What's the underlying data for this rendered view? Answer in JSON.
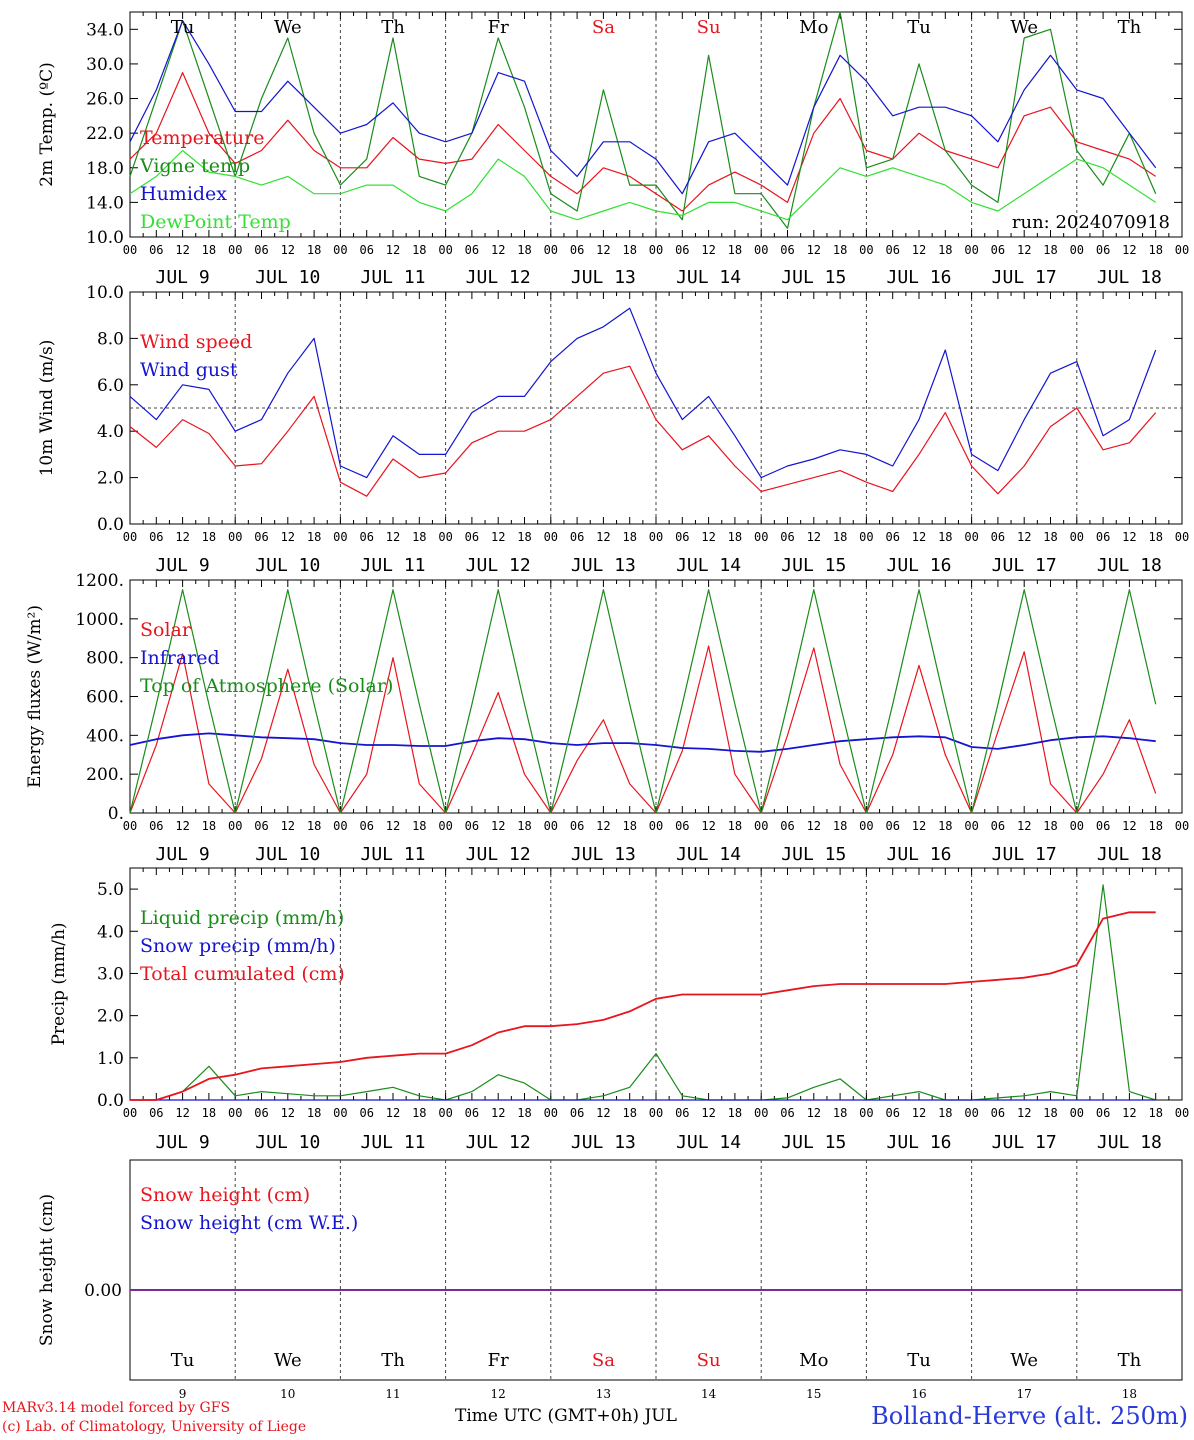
{
  "colors": {
    "red": "#e8141e",
    "green": "#1a8c1a",
    "blue": "#1414d2",
    "lightgreen": "#33e033",
    "grid": "#333333",
    "purple": "#7a2a9a"
  },
  "run_label": "run: 2024070918",
  "hour_ticks": [
    "00",
    "06",
    "12",
    "18"
  ],
  "date_labels": [
    "JUL  9",
    "JUL 10",
    "JUL 11",
    "JUL 12",
    "JUL 13",
    "JUL 14",
    "JUL 15",
    "JUL 16",
    "JUL 17",
    "JUL 18"
  ],
  "weekdays": [
    {
      "label": "Tu",
      "color": "#000000"
    },
    {
      "label": "We",
      "color": "#000000"
    },
    {
      "label": "Th",
      "color": "#000000"
    },
    {
      "label": "Fr",
      "color": "#000000"
    },
    {
      "label": "Sa",
      "color": "#e8141e"
    },
    {
      "label": "Su",
      "color": "#e8141e"
    },
    {
      "label": "Mo",
      "color": "#000000"
    },
    {
      "label": "Tu",
      "color": "#000000"
    },
    {
      "label": "We",
      "color": "#000000"
    },
    {
      "label": "Th",
      "color": "#000000"
    }
  ],
  "day_numbers": [
    "9",
    "10",
    "11",
    "12",
    "13",
    "14",
    "15",
    "16",
    "17",
    "18"
  ],
  "footer": {
    "model": "MARv3.14 model forced by GFS",
    "lab": "(c) Lab. of Climatology, University of Liege",
    "xaxis": "Time UTC (GMT+0h) JUL",
    "station": "Bolland-Herve (alt. 250m)"
  },
  "chart_data": [
    {
      "type": "line",
      "ylabel": "2m Temp. (ºC)",
      "ylim": [
        10,
        36
      ],
      "yticks": [
        "10.0",
        "14.0",
        "18.0",
        "22.0",
        "26.0",
        "30.0",
        "34.0"
      ],
      "x_hours": [
        0,
        6,
        12,
        18,
        24,
        30,
        36,
        42,
        48,
        54,
        60,
        66,
        72,
        78,
        84,
        90,
        96,
        102,
        108,
        114,
        120,
        126,
        132,
        138,
        144,
        150,
        156,
        162,
        168,
        174,
        180,
        186,
        192,
        198,
        204,
        210,
        216,
        222,
        228,
        234
      ],
      "series": [
        {
          "name": "Temperature",
          "color": "#e8141e",
          "values": [
            19,
            22,
            29,
            22,
            18.5,
            20,
            23.5,
            20,
            18,
            18,
            21.5,
            19,
            18.5,
            19,
            23,
            20,
            17,
            15,
            18,
            17,
            15,
            13,
            16,
            17.5,
            16,
            14,
            22,
            26,
            20,
            19,
            22,
            20,
            19,
            18,
            24,
            25,
            21,
            20,
            19,
            17
          ]
        },
        {
          "name": "Vigne temp",
          "color": "#1a8c1a",
          "values": [
            17,
            26,
            35,
            26,
            17,
            26,
            33,
            22,
            16,
            19,
            33,
            17,
            16,
            22,
            33,
            25,
            15,
            13,
            27,
            16,
            16,
            12,
            31,
            15,
            15,
            11,
            25,
            36,
            18,
            19,
            30,
            20,
            16,
            14,
            33,
            34,
            20,
            16,
            22,
            15
          ]
        },
        {
          "name": "Humidex",
          "color": "#1414d2",
          "values": [
            21,
            27,
            35,
            30,
            24.5,
            24.5,
            28,
            25,
            22,
            23,
            25.5,
            22,
            21,
            22,
            29,
            28,
            20,
            17,
            21,
            21,
            19,
            15,
            21,
            22,
            19,
            16,
            25,
            31,
            28,
            24,
            25,
            25,
            24,
            21,
            27,
            31,
            27,
            26,
            22,
            18
          ]
        },
        {
          "name": "DewPoint Temp",
          "color": "#33e033",
          "values": [
            15,
            17,
            20,
            17.5,
            17,
            16,
            17,
            15,
            15,
            16,
            16,
            14,
            13,
            15,
            19,
            17,
            13,
            12,
            13,
            14,
            13,
            12.5,
            14,
            14,
            13,
            12,
            15,
            18,
            17,
            18,
            17,
            16,
            14,
            13,
            15,
            17,
            19,
            18,
            16,
            14
          ]
        }
      ]
    },
    {
      "type": "line",
      "ylabel": "10m Wind (m/s)",
      "ylim": [
        0,
        10
      ],
      "yticks": [
        "0.0",
        "2.0",
        "4.0",
        "6.0",
        "8.0",
        "10.0"
      ],
      "x_hours": [
        0,
        6,
        12,
        18,
        24,
        30,
        36,
        42,
        48,
        54,
        60,
        66,
        72,
        78,
        84,
        90,
        96,
        102,
        108,
        114,
        120,
        126,
        132,
        138,
        144,
        150,
        156,
        162,
        168,
        174,
        180,
        186,
        192,
        198,
        204,
        210,
        216,
        222,
        228,
        234
      ],
      "series": [
        {
          "name": "Wind speed",
          "color": "#e8141e",
          "values": [
            4.2,
            3.3,
            4.5,
            3.9,
            2.5,
            2.6,
            4,
            5.5,
            1.8,
            1.2,
            2.8,
            2,
            2.2,
            3.5,
            4,
            4,
            4.5,
            5.5,
            6.5,
            6.8,
            4.5,
            3.2,
            3.8,
            2.5,
            1.4,
            1.7,
            2,
            2.3,
            1.8,
            1.4,
            3,
            4.8,
            2.5,
            1.3,
            2.5,
            4.2,
            5,
            3.2,
            3.5,
            4.8
          ]
        },
        {
          "name": "Wind gust",
          "color": "#1414d2",
          "values": [
            5.5,
            4.5,
            6,
            5.8,
            4,
            4.5,
            6.5,
            8,
            2.5,
            2,
            3.8,
            3,
            3,
            4.8,
            5.5,
            5.5,
            7,
            8,
            8.5,
            9.3,
            6.5,
            4.5,
            5.5,
            3.8,
            2,
            2.5,
            2.8,
            3.2,
            3,
            2.5,
            4.5,
            7.5,
            3,
            2.3,
            4.5,
            6.5,
            7,
            3.8,
            4.5,
            7.5
          ]
        }
      ]
    },
    {
      "type": "line",
      "ylabel": "Energy fluxes (W/m²)",
      "ylim": [
        0,
        1200
      ],
      "yticks": [
        "0.",
        "200.",
        "400.",
        "600.",
        "800.",
        "1000.",
        "1200."
      ],
      "x_hours": [
        0,
        6,
        12,
        18,
        24,
        30,
        36,
        42,
        48,
        54,
        60,
        66,
        72,
        78,
        84,
        90,
        96,
        102,
        108,
        114,
        120,
        126,
        132,
        138,
        144,
        150,
        156,
        162,
        168,
        174,
        180,
        186,
        192,
        198,
        204,
        210,
        216,
        222,
        228,
        234
      ],
      "series": [
        {
          "name": "Solar",
          "color": "#e8141e",
          "values": [
            0,
            350,
            820,
            150,
            0,
            280,
            740,
            250,
            0,
            200,
            800,
            150,
            0,
            300,
            620,
            200,
            0,
            270,
            480,
            150,
            0,
            320,
            860,
            200,
            0,
            400,
            850,
            250,
            0,
            300,
            760,
            300,
            0,
            420,
            830,
            150,
            0,
            200,
            480,
            100
          ]
        },
        {
          "name": "Infrared",
          "color": "#1414d2",
          "values": [
            350,
            380,
            400,
            410,
            400,
            390,
            385,
            380,
            360,
            350,
            350,
            345,
            345,
            370,
            385,
            380,
            360,
            350,
            360,
            360,
            350,
            335,
            330,
            320,
            315,
            330,
            350,
            370,
            380,
            390,
            395,
            390,
            340,
            330,
            350,
            375,
            390,
            395,
            385,
            370
          ]
        },
        {
          "name": "Top of Atmosphere (Solar)",
          "color": "#1a8c1a",
          "values": [
            0,
            560,
            1150,
            560,
            0,
            560,
            1150,
            560,
            0,
            560,
            1150,
            560,
            0,
            560,
            1150,
            560,
            0,
            560,
            1150,
            560,
            0,
            560,
            1150,
            560,
            0,
            560,
            1150,
            560,
            0,
            560,
            1150,
            560,
            0,
            560,
            1150,
            560,
            0,
            560,
            1150,
            560
          ]
        }
      ]
    },
    {
      "type": "line",
      "ylabel": "Precip (mm/h)",
      "ylim": [
        0,
        5.5
      ],
      "yticks": [
        "0.0",
        "1.0",
        "2.0",
        "3.0",
        "4.0",
        "5.0"
      ],
      "x_hours": [
        0,
        6,
        12,
        18,
        24,
        30,
        36,
        42,
        48,
        54,
        60,
        66,
        72,
        78,
        84,
        90,
        96,
        102,
        108,
        114,
        120,
        126,
        132,
        138,
        144,
        150,
        156,
        162,
        168,
        174,
        180,
        186,
        192,
        198,
        204,
        210,
        216,
        222,
        228,
        234
      ],
      "series": [
        {
          "name": "Liquid precip (mm/h)",
          "color": "#1a8c1a",
          "values": [
            0,
            0,
            0.2,
            0.8,
            0.1,
            0.2,
            0.15,
            0.1,
            0.1,
            0.2,
            0.3,
            0.1,
            0,
            0.2,
            0.6,
            0.4,
            0,
            0,
            0.1,
            0.3,
            1.1,
            0.1,
            0,
            0,
            0,
            0.05,
            0.3,
            0.5,
            0,
            0.1,
            0.2,
            0,
            0,
            0.05,
            0.1,
            0.2,
            0.1,
            5.1,
            0.2,
            0
          ]
        },
        {
          "name": "Snow precip (mm/h)",
          "color": "#1414d2",
          "values": [
            0,
            0,
            0,
            0,
            0,
            0,
            0,
            0,
            0,
            0,
            0,
            0,
            0,
            0,
            0,
            0,
            0,
            0,
            0,
            0,
            0,
            0,
            0,
            0,
            0,
            0,
            0,
            0,
            0,
            0,
            0,
            0,
            0,
            0,
            0,
            0,
            0,
            0,
            0,
            0
          ]
        },
        {
          "name": "Total cumulated (cm)",
          "color": "#e8141e",
          "values": [
            0,
            0,
            0.2,
            0.5,
            0.6,
            0.75,
            0.8,
            0.85,
            0.9,
            1,
            1.05,
            1.1,
            1.1,
            1.3,
            1.6,
            1.75,
            1.75,
            1.8,
            1.9,
            2.1,
            2.4,
            2.5,
            2.5,
            2.5,
            2.5,
            2.6,
            2.7,
            2.75,
            2.75,
            2.75,
            2.75,
            2.75,
            2.8,
            2.85,
            2.9,
            3,
            3.2,
            4.3,
            4.45,
            4.45
          ]
        }
      ]
    },
    {
      "type": "line",
      "ylabel": "Snow height (cm)",
      "yticks": [
        "0.00"
      ],
      "series": [
        {
          "name": "Snow height (cm)",
          "color": "#e8141e",
          "values": [
            0,
            0
          ]
        },
        {
          "name": "Snow height (cm W.E.)",
          "color": "#1414d2",
          "values": [
            0,
            0
          ]
        }
      ]
    }
  ]
}
